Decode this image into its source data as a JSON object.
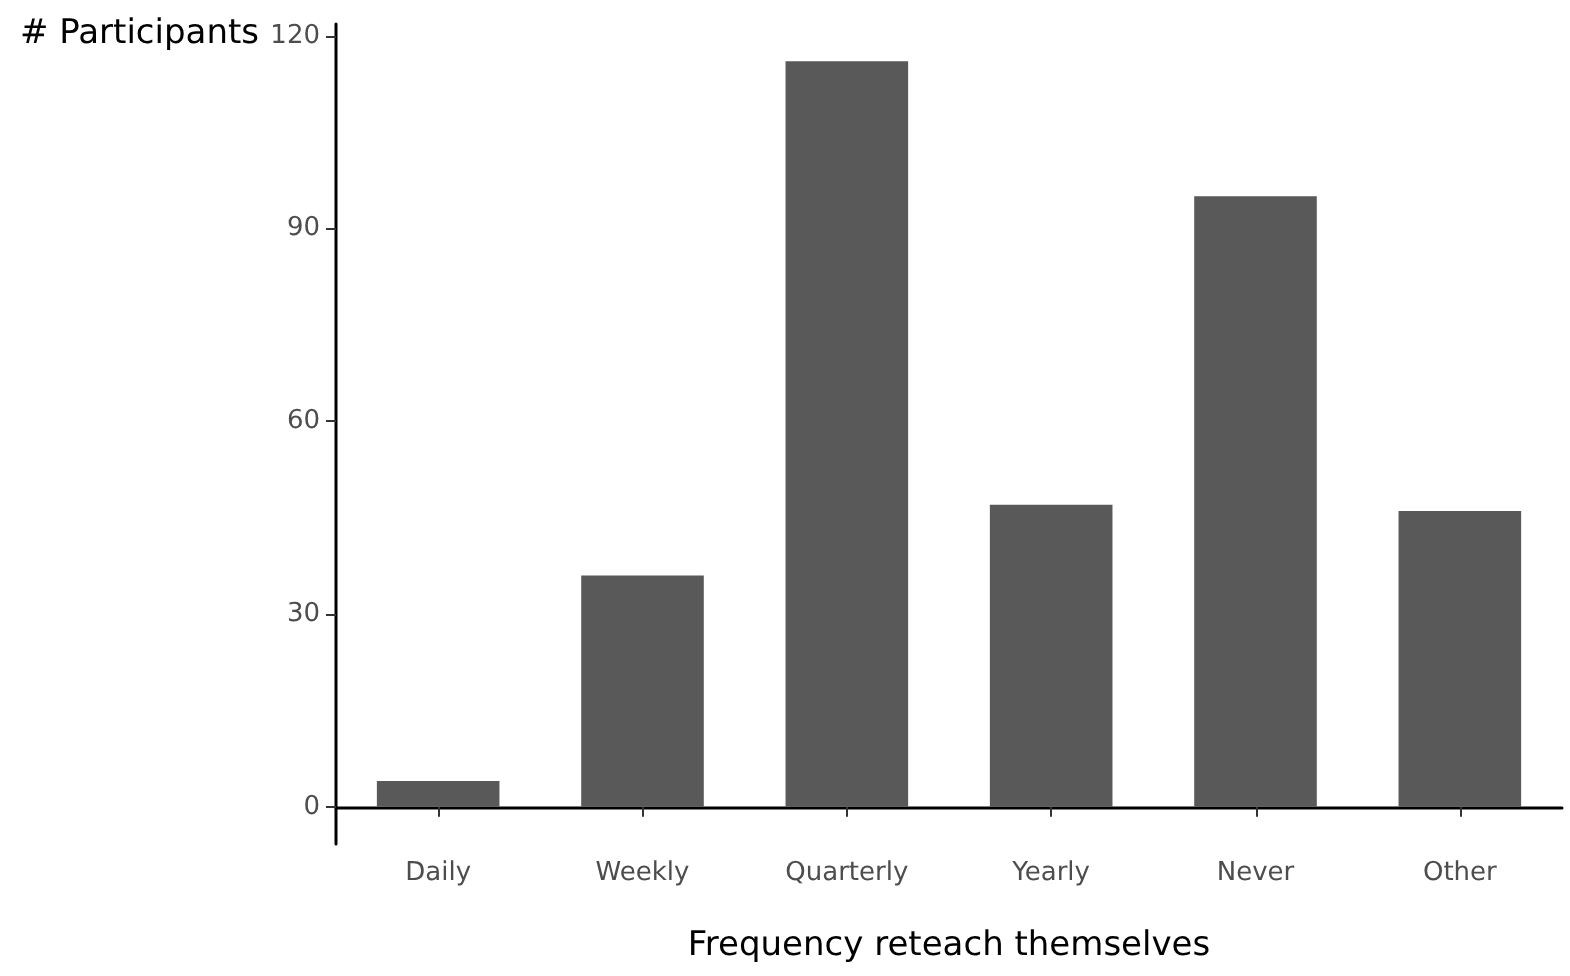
{
  "chart_data": {
    "type": "bar",
    "xlabel": "Frequency reteach themselves",
    "ylabel": "# Participants",
    "categories": [
      "Daily",
      "Weekly",
      "Quarterly",
      "Yearly",
      "Never",
      "Other"
    ],
    "values": [
      4,
      36,
      116,
      47,
      95,
      46
    ],
    "color": "#595959",
    "ylim": [
      -5.8,
      121.8
    ],
    "yticks": [
      0,
      30,
      60,
      90,
      120
    ],
    "grid": false
  }
}
